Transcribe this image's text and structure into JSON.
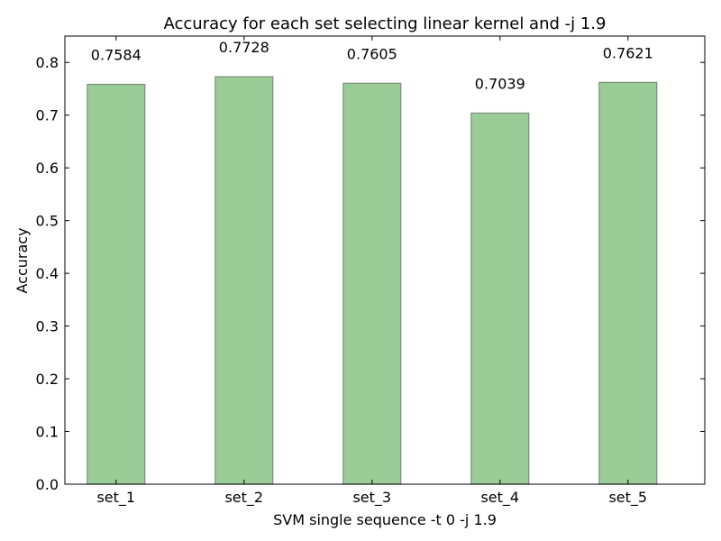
{
  "chart_data": {
    "type": "bar",
    "title": "Accuracy for each set selecting linear kernel and -j 1.9",
    "xlabel": "SVM single sequence -t 0 -j 1.9",
    "ylabel": "Accuracy",
    "categories": [
      "set_1",
      "set_2",
      "set_3",
      "set_4",
      "set_5"
    ],
    "values": [
      0.7584,
      0.7728,
      0.7605,
      0.7039,
      0.7621
    ],
    "data_labels": [
      "0.7584",
      "0.7728",
      "0.7605",
      "0.7039",
      "0.7621"
    ],
    "ylim": [
      0,
      0.85
    ],
    "yticks": [
      0.0,
      0.1,
      0.2,
      0.3,
      0.4,
      0.5,
      0.6,
      0.7,
      0.8
    ],
    "ytick_labels": [
      "0.0",
      "0.1",
      "0.2",
      "0.3",
      "0.4",
      "0.5",
      "0.6",
      "0.7",
      "0.8"
    ],
    "grid": false,
    "legend": "none",
    "colors": {
      "bar_fill": "#9ACC98",
      "bar_edge": "#7A8F79",
      "axis": "#000000"
    }
  }
}
